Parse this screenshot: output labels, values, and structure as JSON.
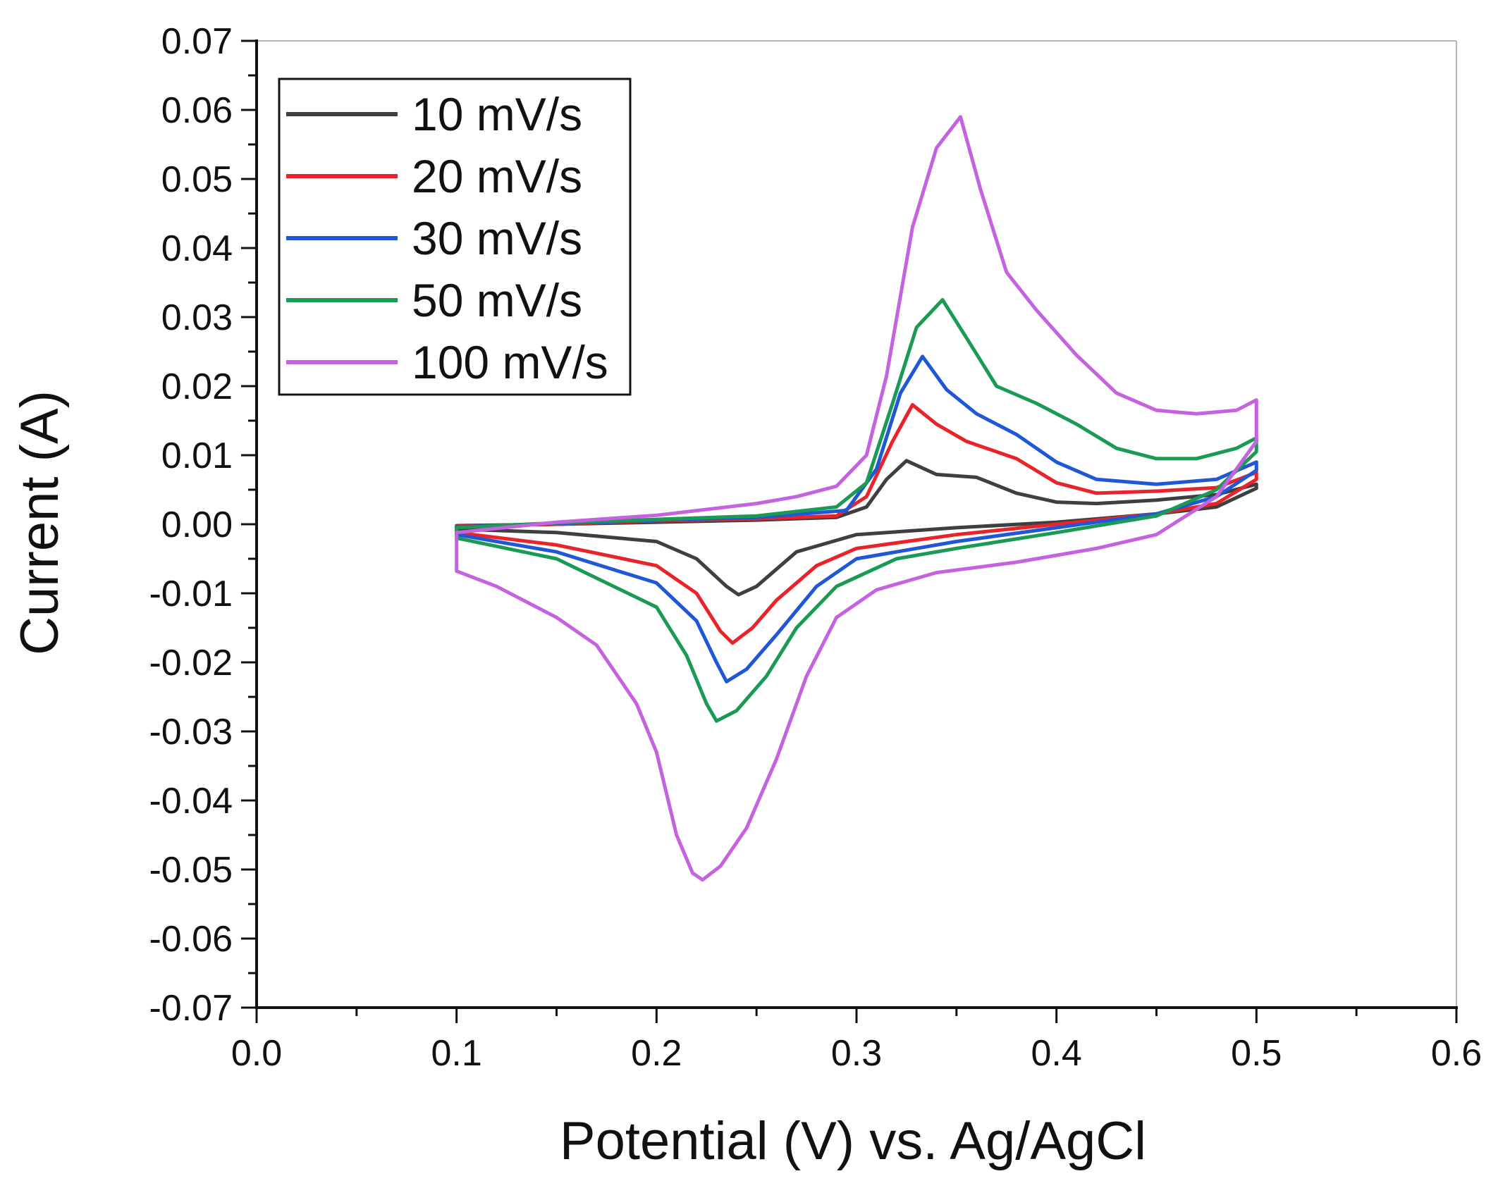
{
  "chart_data": {
    "type": "line",
    "title": "",
    "xlabel": "Potential (V) vs. Ag/AgCl",
    "ylabel": "Current (A)",
    "xlim": [
      0.0,
      0.6
    ],
    "ylim": [
      -0.07,
      0.07
    ],
    "xticks": [
      "0.0",
      "0.1",
      "0.2",
      "0.3",
      "0.4",
      "0.5",
      "0.6"
    ],
    "yticks": [
      "0.07",
      "0.06",
      "0.05",
      "0.04",
      "0.03",
      "0.02",
      "0.01",
      "0.00",
      "-0.01",
      "-0.02",
      "-0.03",
      "-0.04",
      "-0.05",
      "-0.06",
      "-0.07"
    ],
    "grid": false,
    "legend_position": "top-left",
    "series": [
      {
        "name": "10 mV/s",
        "color": "#3f3f3f",
        "points": [
          [
            0.1,
            -0.0007
          ],
          [
            0.15,
            -0.0012
          ],
          [
            0.2,
            -0.0025
          ],
          [
            0.22,
            -0.005
          ],
          [
            0.235,
            -0.009
          ],
          [
            0.241,
            -0.0102
          ],
          [
            0.25,
            -0.009
          ],
          [
            0.27,
            -0.004
          ],
          [
            0.3,
            -0.0015
          ],
          [
            0.35,
            -0.0005
          ],
          [
            0.4,
            0.0003
          ],
          [
            0.45,
            0.0015
          ],
          [
            0.48,
            0.0025
          ],
          [
            0.5,
            0.0052
          ],
          [
            0.5,
            0.0058
          ],
          [
            0.48,
            0.0043
          ],
          [
            0.45,
            0.0035
          ],
          [
            0.42,
            0.003
          ],
          [
            0.4,
            0.0032
          ],
          [
            0.38,
            0.0045
          ],
          [
            0.36,
            0.0068
          ],
          [
            0.34,
            0.0072
          ],
          [
            0.325,
            0.0092
          ],
          [
            0.315,
            0.0065
          ],
          [
            0.305,
            0.0025
          ],
          [
            0.29,
            0.001
          ],
          [
            0.25,
            0.0006
          ],
          [
            0.2,
            0.0003
          ],
          [
            0.15,
            0.0
          ],
          [
            0.1,
            -0.0002
          ],
          [
            0.1,
            -0.0007
          ]
        ]
      },
      {
        "name": "20 mV/s",
        "color": "#e8242a",
        "points": [
          [
            0.1,
            -0.0012
          ],
          [
            0.15,
            -0.003
          ],
          [
            0.2,
            -0.006
          ],
          [
            0.22,
            -0.01
          ],
          [
            0.232,
            -0.0155
          ],
          [
            0.238,
            -0.0172
          ],
          [
            0.248,
            -0.015
          ],
          [
            0.26,
            -0.011
          ],
          [
            0.28,
            -0.006
          ],
          [
            0.3,
            -0.0035
          ],
          [
            0.35,
            -0.0015
          ],
          [
            0.4,
            0.0
          ],
          [
            0.45,
            0.0015
          ],
          [
            0.48,
            0.003
          ],
          [
            0.5,
            0.0065
          ],
          [
            0.5,
            0.0075
          ],
          [
            0.48,
            0.0053
          ],
          [
            0.45,
            0.0048
          ],
          [
            0.42,
            0.0045
          ],
          [
            0.4,
            0.006
          ],
          [
            0.38,
            0.0095
          ],
          [
            0.355,
            0.012
          ],
          [
            0.34,
            0.0145
          ],
          [
            0.328,
            0.0173
          ],
          [
            0.318,
            0.012
          ],
          [
            0.305,
            0.004
          ],
          [
            0.29,
            0.0012
          ],
          [
            0.25,
            0.0008
          ],
          [
            0.2,
            0.0005
          ],
          [
            0.15,
            0.0
          ],
          [
            0.1,
            -0.0003
          ],
          [
            0.1,
            -0.0012
          ]
        ]
      },
      {
        "name": "30 mV/s",
        "color": "#1f57d6",
        "points": [
          [
            0.1,
            -0.0015
          ],
          [
            0.15,
            -0.004
          ],
          [
            0.2,
            -0.0085
          ],
          [
            0.22,
            -0.014
          ],
          [
            0.23,
            -0.02
          ],
          [
            0.235,
            -0.0228
          ],
          [
            0.245,
            -0.021
          ],
          [
            0.26,
            -0.016
          ],
          [
            0.28,
            -0.009
          ],
          [
            0.3,
            -0.005
          ],
          [
            0.35,
            -0.0025
          ],
          [
            0.4,
            -0.0005
          ],
          [
            0.45,
            0.0015
          ],
          [
            0.48,
            0.004
          ],
          [
            0.5,
            0.0078
          ],
          [
            0.5,
            0.009
          ],
          [
            0.48,
            0.0065
          ],
          [
            0.45,
            0.0058
          ],
          [
            0.42,
            0.0065
          ],
          [
            0.4,
            0.009
          ],
          [
            0.38,
            0.013
          ],
          [
            0.36,
            0.016
          ],
          [
            0.345,
            0.0195
          ],
          [
            0.333,
            0.0243
          ],
          [
            0.322,
            0.019
          ],
          [
            0.31,
            0.008
          ],
          [
            0.295,
            0.002
          ],
          [
            0.25,
            0.001
          ],
          [
            0.2,
            0.0006
          ],
          [
            0.15,
            0.0001
          ],
          [
            0.1,
            -0.0004
          ],
          [
            0.1,
            -0.0015
          ]
        ]
      },
      {
        "name": "50 mV/s",
        "color": "#1a9a55",
        "points": [
          [
            0.1,
            -0.002
          ],
          [
            0.15,
            -0.005
          ],
          [
            0.2,
            -0.012
          ],
          [
            0.215,
            -0.019
          ],
          [
            0.225,
            -0.026
          ],
          [
            0.23,
            -0.0285
          ],
          [
            0.24,
            -0.027
          ],
          [
            0.255,
            -0.022
          ],
          [
            0.27,
            -0.015
          ],
          [
            0.29,
            -0.009
          ],
          [
            0.32,
            -0.005
          ],
          [
            0.35,
            -0.0035
          ],
          [
            0.4,
            -0.0012
          ],
          [
            0.45,
            0.0012
          ],
          [
            0.48,
            0.005
          ],
          [
            0.5,
            0.0105
          ],
          [
            0.5,
            0.0125
          ],
          [
            0.49,
            0.011
          ],
          [
            0.47,
            0.0095
          ],
          [
            0.45,
            0.0095
          ],
          [
            0.43,
            0.011
          ],
          [
            0.41,
            0.0145
          ],
          [
            0.39,
            0.0175
          ],
          [
            0.37,
            0.02
          ],
          [
            0.355,
            0.027
          ],
          [
            0.343,
            0.0325
          ],
          [
            0.33,
            0.0285
          ],
          [
            0.318,
            0.0175
          ],
          [
            0.305,
            0.006
          ],
          [
            0.29,
            0.0025
          ],
          [
            0.25,
            0.0012
          ],
          [
            0.2,
            0.0007
          ],
          [
            0.15,
            0.0002
          ],
          [
            0.1,
            -0.0005
          ],
          [
            0.1,
            -0.002
          ]
        ]
      },
      {
        "name": "100 mV/s",
        "color": "#c562e0",
        "points": [
          [
            0.1,
            -0.0068
          ],
          [
            0.12,
            -0.009
          ],
          [
            0.15,
            -0.0135
          ],
          [
            0.17,
            -0.0175
          ],
          [
            0.19,
            -0.026
          ],
          [
            0.2,
            -0.033
          ],
          [
            0.21,
            -0.045
          ],
          [
            0.218,
            -0.0505
          ],
          [
            0.223,
            -0.0515
          ],
          [
            0.232,
            -0.0495
          ],
          [
            0.245,
            -0.044
          ],
          [
            0.26,
            -0.034
          ],
          [
            0.275,
            -0.022
          ],
          [
            0.29,
            -0.0135
          ],
          [
            0.31,
            -0.0095
          ],
          [
            0.34,
            -0.007
          ],
          [
            0.38,
            -0.0055
          ],
          [
            0.42,
            -0.0035
          ],
          [
            0.45,
            -0.0015
          ],
          [
            0.48,
            0.004
          ],
          [
            0.5,
            0.012
          ],
          [
            0.5,
            0.018
          ],
          [
            0.49,
            0.0165
          ],
          [
            0.47,
            0.016
          ],
          [
            0.45,
            0.0165
          ],
          [
            0.43,
            0.019
          ],
          [
            0.41,
            0.0245
          ],
          [
            0.39,
            0.031
          ],
          [
            0.375,
            0.0365
          ],
          [
            0.362,
            0.0485
          ],
          [
            0.352,
            0.059
          ],
          [
            0.34,
            0.0545
          ],
          [
            0.328,
            0.043
          ],
          [
            0.315,
            0.0215
          ],
          [
            0.305,
            0.01
          ],
          [
            0.29,
            0.0055
          ],
          [
            0.27,
            0.004
          ],
          [
            0.25,
            0.003
          ],
          [
            0.2,
            0.0013
          ],
          [
            0.15,
            0.0003
          ],
          [
            0.1,
            -0.0012
          ],
          [
            0.1,
            -0.0068
          ]
        ]
      }
    ]
  }
}
